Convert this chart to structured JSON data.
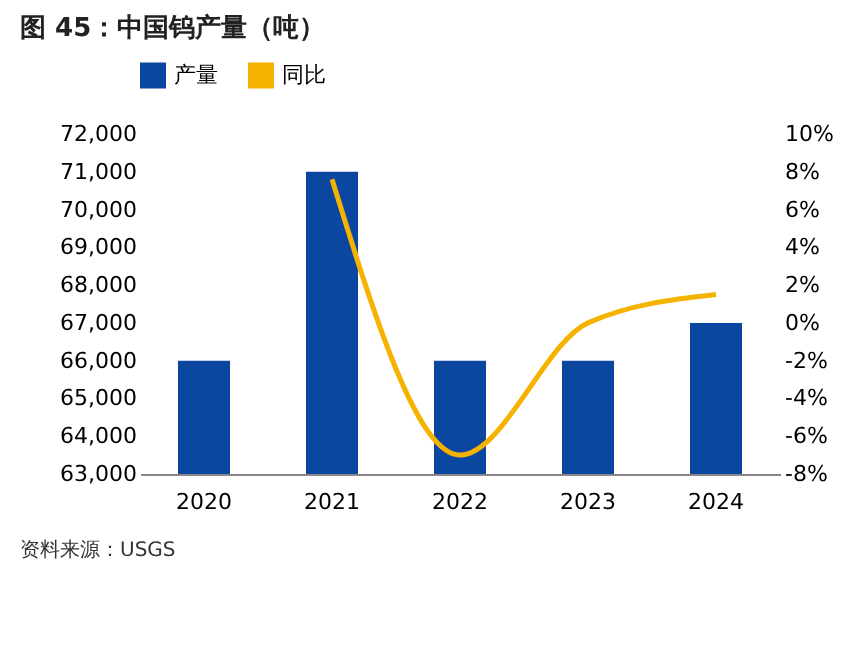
{
  "chart_data": {
    "type": "bar",
    "title": "图 45：中国钨产量（吨）",
    "categories": [
      "2020",
      "2021",
      "2022",
      "2023",
      "2024"
    ],
    "series": [
      {
        "name": "产量",
        "color": "#0b47a1",
        "values": [
          66000,
          71000,
          66000,
          66000,
          67000
        ]
      },
      {
        "name": "同比",
        "type": "line",
        "axis": "y2",
        "color": "#f5b300",
        "values": [
          null,
          7.6,
          -7.0,
          0.0,
          1.5
        ]
      }
    ],
    "ylim": [
      63000,
      72000
    ],
    "yticks": [
      {
        "value": 63000,
        "label": "63,000"
      },
      {
        "value": 64000,
        "label": "64,000"
      },
      {
        "value": 65000,
        "label": "65,000"
      },
      {
        "value": 66000,
        "label": "66,000"
      },
      {
        "value": 67000,
        "label": "67,000"
      },
      {
        "value": 68000,
        "label": "68,000"
      },
      {
        "value": 69000,
        "label": "69,000"
      },
      {
        "value": 70000,
        "label": "70,000"
      },
      {
        "value": 71000,
        "label": "71,000"
      },
      {
        "value": 72000,
        "label": "72,000"
      }
    ],
    "y2lim": [
      -8,
      10
    ],
    "y2ticks": [
      {
        "value": -8,
        "label": "-8%"
      },
      {
        "value": -6,
        "label": "-6%"
      },
      {
        "value": -4,
        "label": "-4%"
      },
      {
        "value": -2,
        "label": "-2%"
      },
      {
        "value": 0,
        "label": "0%"
      },
      {
        "value": 2,
        "label": "2%"
      },
      {
        "value": 4,
        "label": "4%"
      },
      {
        "value": 6,
        "label": "6%"
      },
      {
        "value": 8,
        "label": "8%"
      },
      {
        "value": 10,
        "label": "10%"
      }
    ],
    "legend": "top",
    "grid": false,
    "marker": "none",
    "annotations": [
      "资料来源：USGS"
    ]
  }
}
